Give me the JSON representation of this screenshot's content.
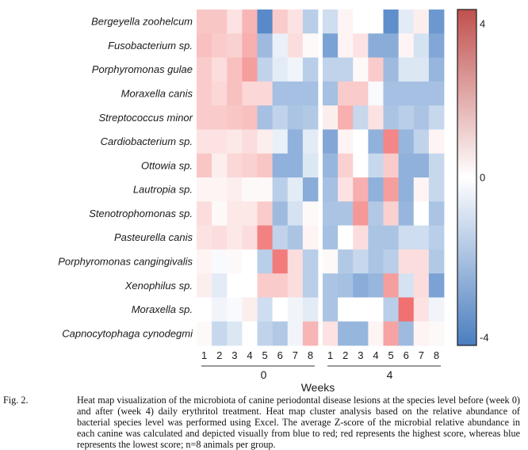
{
  "chart_data": {
    "type": "heatmap",
    "title": "",
    "xlabel": "Weeks",
    "ylabel": "",
    "rows": [
      "Bergeyella zoohelcum",
      "Fusobacterium sp.",
      "Porphyromonas gulae",
      "Moraxella canis",
      "Streptococcus minor",
      "Cardiobacterium sp.",
      "Ottowia sp.",
      "Lautropia sp.",
      "Stenotrophomonas sp.",
      "Pasteurella canis",
      "Porphyromonas cangingivalis",
      "Xenophilus sp.",
      "Moraxella sp.",
      "Capnocytophaga cynodegmi"
    ],
    "groups": [
      {
        "label": "0",
        "columns": [
          "1",
          "2",
          "3",
          "4",
          "5",
          "6",
          "7",
          "8"
        ]
      },
      {
        "label": "4",
        "columns": [
          "1",
          "2",
          "3",
          "4",
          "5",
          "6",
          "7",
          "8"
        ]
      }
    ],
    "values": [
      [
        1.0,
        1.0,
        0.5,
        1.3,
        -2.4,
        0.9,
        0.5,
        -1.0,
        -0.7,
        0.2,
        0.0,
        0.0,
        -2.3,
        -0.4,
        0.3,
        -2.1
      ],
      [
        1.1,
        0.9,
        0.8,
        1.4,
        -1.4,
        -0.3,
        0.6,
        0.1,
        -1.9,
        0.2,
        0.5,
        -1.7,
        -1.7,
        0.2,
        -0.6,
        -1.8
      ],
      [
        0.9,
        0.6,
        1.1,
        1.7,
        -0.9,
        -0.4,
        -0.2,
        -1.0,
        -0.9,
        -0.9,
        0.1,
        0.9,
        -1.4,
        -0.5,
        -0.5,
        -1.5
      ],
      [
        0.9,
        0.7,
        1.1,
        0.7,
        0.7,
        -1.3,
        -1.3,
        -1.3,
        -1.3,
        0.9,
        0.9,
        -0.1,
        -1.3,
        -1.3,
        -1.3,
        -1.3
      ],
      [
        0.9,
        0.9,
        1.0,
        1.1,
        -1.3,
        -0.9,
        -1.2,
        -1.1,
        0.3,
        1.4,
        -0.8,
        0.5,
        -1.2,
        -1.0,
        -1.2,
        -0.8
      ],
      [
        0.5,
        0.5,
        0.4,
        0.6,
        0.3,
        -0.3,
        -1.6,
        -0.4,
        -1.8,
        0.2,
        0.0,
        -1.6,
        2.1,
        -1.5,
        -0.9,
        0.2
      ],
      [
        1.0,
        0.3,
        0.7,
        0.8,
        1.0,
        -1.6,
        -1.6,
        -0.5,
        -1.5,
        0.8,
        0.0,
        -0.8,
        0.9,
        -1.6,
        -1.6,
        -0.8
      ],
      [
        0.2,
        0.2,
        0.3,
        0.1,
        0.1,
        -1.0,
        -0.4,
        -1.7,
        -1.3,
        0.5,
        1.4,
        -1.6,
        1.7,
        -1.6,
        0.2,
        -0.8
      ],
      [
        0.6,
        0.1,
        0.4,
        0.4,
        0.9,
        -1.4,
        -0.6,
        0.1,
        -1.2,
        -1.2,
        1.8,
        -1.1,
        0.8,
        -1.5,
        0.0,
        -1.2
      ],
      [
        0.5,
        0.6,
        0.4,
        0.6,
        2.2,
        -0.9,
        -1.2,
        0.2,
        -1.3,
        0.0,
        0.6,
        -1.2,
        -1.2,
        -0.7,
        -0.7,
        -1.0
      ],
      [
        0.2,
        -0.1,
        0.1,
        0.0,
        -1.0,
        2.3,
        0.6,
        -1.0,
        0.1,
        -1.1,
        -0.8,
        -1.2,
        -1.0,
        0.6,
        0.6,
        -1.1
      ],
      [
        0.3,
        -0.4,
        0.0,
        0.0,
        0.9,
        0.9,
        0.6,
        -1.0,
        -1.2,
        -1.3,
        -1.7,
        -1.5,
        1.7,
        -0.6,
        0.6,
        -1.9
      ],
      [
        0.0,
        -0.2,
        -0.1,
        0.3,
        -0.7,
        0.0,
        -0.2,
        -0.4,
        -1.2,
        0.0,
        0.0,
        0.0,
        -1.0,
        2.5,
        0.5,
        -0.2
      ],
      [
        0.1,
        -0.8,
        -0.5,
        0.0,
        -0.9,
        -1.1,
        -0.2,
        1.3,
        0.5,
        -1.5,
        -1.5,
        0.2,
        1.6,
        -1.4,
        0.2,
        0.1
      ]
    ],
    "colorbar": {
      "min": -4,
      "max": 4,
      "ticks": [
        "4",
        "0",
        "-4"
      ],
      "tick_values": [
        4,
        0,
        -4
      ],
      "low_color": "#4a7ebf",
      "mid_color": "#ffffff",
      "high_color": "#c0504d"
    },
    "cell_low_color": "#4a80c4",
    "cell_high_color": "#f06a6a",
    "legend": "right",
    "grid": false
  },
  "caption": {
    "label": "Fig. 2.",
    "text": "Heat map visualization of the microbiota of canine periodontal disease lesions at the species level before (week 0) and after (week 4) daily erythritol treatment. Heat map cluster analysis based on the relative abundance of bacterial species level was performed using Excel. The average Z-score of the microbial relative abundance in each canine was calculated and depicted visually from blue to red; red represents the highest score, whereas blue represents the lowest score; n=8 animals per group."
  }
}
